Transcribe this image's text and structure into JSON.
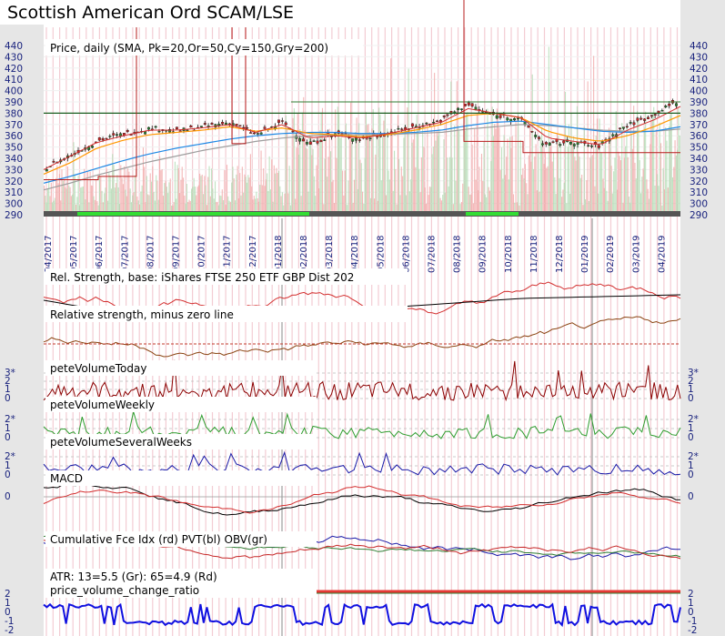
{
  "title": "Scottish American Ord SCAM/LSE",
  "chart_data": [
    {
      "type": "line",
      "panel": "price",
      "label": "Price, daily (SMA, Pk=20,Or=50,Cy=150,Gry=200)",
      "y_ticks": [
        "440",
        "430",
        "420",
        "410",
        "400",
        "390",
        "380",
        "370",
        "360",
        "350",
        "340",
        "330",
        "320",
        "310",
        "300",
        "290"
      ],
      "ylim": [
        290,
        440
      ],
      "dates": [
        "04/2017",
        "05/2017",
        "06/2017",
        "07/2017",
        "08/2017",
        "09/2017",
        "10/2017",
        "11/2017",
        "12/2017",
        "01/2018",
        "02/2018",
        "03/2018",
        "04/2018",
        "05/2018",
        "06/2018",
        "07/2018",
        "08/2018",
        "09/2018",
        "10/2018",
        "11/2018",
        "12/2018",
        "01/2019",
        "02/2019",
        "03/2019",
        "04/2019"
      ],
      "close_anchors": [
        332,
        344,
        356,
        362,
        367,
        364,
        368,
        372,
        361,
        372,
        352,
        362,
        357,
        362,
        368,
        373,
        388,
        378,
        376,
        352,
        355,
        350,
        368,
        377,
        390
      ],
      "sma20": [
        330,
        342,
        354,
        360,
        365,
        365,
        367,
        370,
        363,
        370,
        358,
        360,
        358,
        362,
        367,
        372,
        384,
        380,
        376,
        358,
        355,
        352,
        365,
        374,
        386
      ],
      "sma50": [
        326,
        336,
        349,
        356,
        361,
        363,
        365,
        368,
        364,
        367,
        362,
        361,
        359,
        361,
        365,
        370,
        378,
        380,
        376,
        364,
        358,
        355,
        360,
        368,
        378
      ],
      "sma150": [
        318,
        324,
        331,
        338,
        344,
        349,
        353,
        357,
        360,
        362,
        363,
        363,
        362,
        362,
        363,
        365,
        369,
        372,
        373,
        370,
        367,
        364,
        363,
        364,
        368
      ],
      "sma200": [
        312,
        318,
        325,
        331,
        337,
        342,
        347,
        351,
        355,
        358,
        360,
        361,
        361,
        361,
        362,
        363,
        366,
        368,
        370,
        369,
        367,
        365,
        364,
        364,
        366
      ]
    },
    {
      "type": "line",
      "panel": "relative-strength",
      "label": "Rel. Strength, base: iShares FTSE 250 ETF GBP Dist 202"
    },
    {
      "type": "line",
      "panel": "relative-strength-zero",
      "label": "Relative strength, minus zero line"
    },
    {
      "type": "line",
      "panel": "volume-today",
      "label": "peteVolumeToday",
      "y_ticks": [
        "3*",
        "2",
        "1",
        "0"
      ]
    },
    {
      "type": "line",
      "panel": "volume-weekly",
      "label": "peteVolumeWeekly",
      "y_ticks": [
        "2*",
        "1",
        "0"
      ]
    },
    {
      "type": "line",
      "panel": "volume-several-weeks",
      "label": "peteVolumeSeveralWeeks",
      "y_ticks": [
        "2*",
        "1",
        "0"
      ]
    },
    {
      "type": "line",
      "panel": "macd",
      "label": "MACD",
      "y_ticks": [
        "0"
      ]
    },
    {
      "type": "line",
      "panel": "cumulative",
      "label": "Cumulative Fce Idx (rd) PVT(bl) OBV(gr)"
    },
    {
      "type": "line",
      "panel": "atr",
      "label": "ATR: 13=5.5 (Gr): 65=4.9 (Rd)"
    },
    {
      "type": "line",
      "panel": "pvcr",
      "label": "price_volume_change_ratio",
      "y_ticks": [
        "2",
        "1",
        "0",
        "-1",
        "-2"
      ]
    }
  ],
  "colors": {
    "background": "#ffffff",
    "grid_pink": "#f2c4cc",
    "candle_up": "#2e7d32",
    "candle_down": "#c62828",
    "sma20": "#d32f2f",
    "sma50": "#ff9800",
    "sma150": "#1e88e5",
    "sma200": "#9e9e9e",
    "axis_text": "#1a237e",
    "vol_today": "#8b0000",
    "vol_weekly": "#2e9d2e",
    "vol_several": "#1a1aa8",
    "rs_curve": "#8b4513",
    "pvcr": "#1010e0",
    "atr_red": "#e53935"
  }
}
